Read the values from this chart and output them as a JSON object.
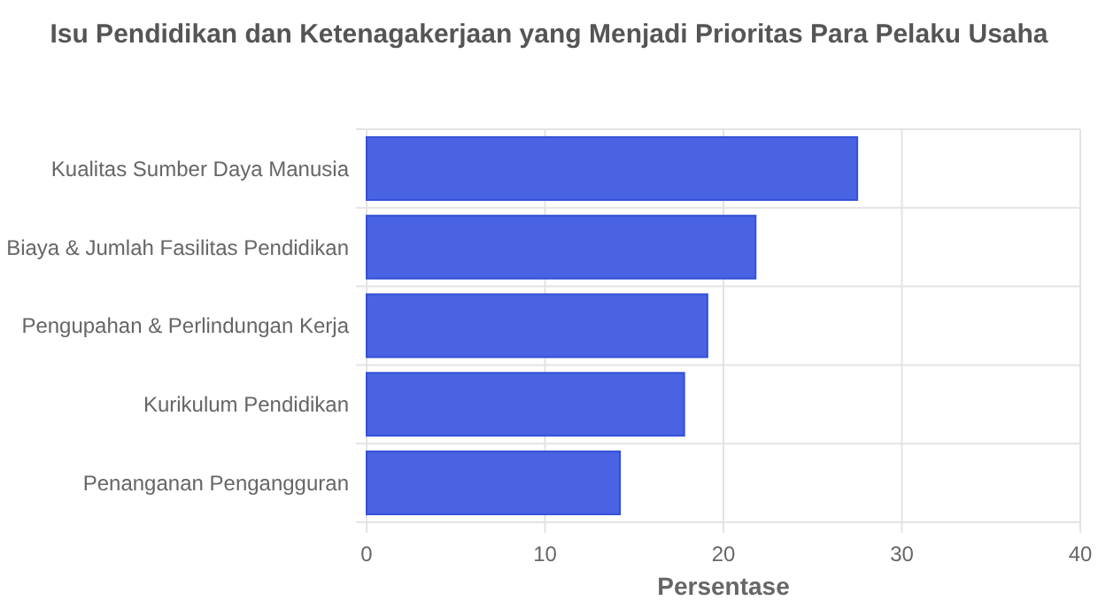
{
  "chart_data": {
    "type": "bar",
    "orientation": "horizontal",
    "title": "Isu Pendidikan dan Ketenagakerjaan yang Menjadi Prioritas Para Pelaku Usaha",
    "xlabel": "Persentase",
    "categories": [
      "Kualitas Sumber Daya Manusia",
      "Biaya & Jumlah Fasilitas Pendidikan",
      "Pengupahan & Perlindungan Kerja",
      "Kurikulum Pendidikan",
      "Penanganan Pengangguran"
    ],
    "values": [
      27.5,
      21.8,
      19.1,
      17.8,
      14.2
    ],
    "color": "#4a63e3",
    "xlim": [
      0,
      40
    ],
    "xticks": [
      0,
      10,
      20,
      30,
      40
    ],
    "grid": true
  }
}
